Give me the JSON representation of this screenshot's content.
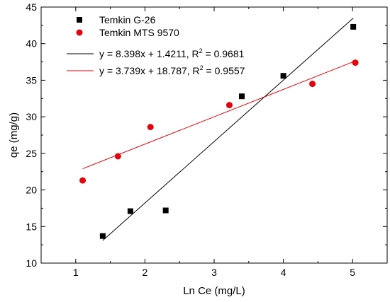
{
  "chart_data": {
    "type": "scatter",
    "title": "",
    "xlabel": "Ln Ce (mg/L)",
    "ylabel": "qe (mg/g)",
    "xlim": [
      0.5,
      5.5
    ],
    "ylim": [
      10,
      45
    ],
    "x_ticks": [
      1,
      2,
      3,
      4,
      5
    ],
    "y_ticks": [
      10,
      15,
      20,
      25,
      30,
      35,
      40,
      45
    ],
    "grid": false,
    "legend_position": "top-left",
    "series": [
      {
        "name": "Temkin G-26",
        "marker": "square",
        "color": "#000000",
        "x": [
          1.39,
          1.79,
          2.3,
          3.4,
          4.0,
          5.01
        ],
        "y": [
          13.7,
          17.1,
          17.2,
          32.8,
          35.6,
          42.3
        ]
      },
      {
        "name": "Temkin MTS 9570",
        "marker": "circle",
        "color": "#e8000b",
        "x": [
          1.1,
          1.61,
          2.08,
          3.22,
          4.42,
          5.04
        ],
        "y": [
          21.3,
          24.6,
          28.6,
          31.6,
          34.5,
          37.4
        ]
      }
    ],
    "fits": [
      {
        "series": "Temkin G-26",
        "color": "#000000",
        "slope": 8.398,
        "intercept": 1.4211,
        "x_range": [
          1.39,
          5.01
        ],
        "label_main": "y = 8.398x + 1.4211, R",
        "label_sup": "2",
        "label_tail": " = 0.9681"
      },
      {
        "series": "Temkin MTS 9570",
        "color": "#e8000b",
        "slope": 3.739,
        "intercept": 18.787,
        "x_range": [
          1.1,
          5.04
        ],
        "label_main": "y = 3.739x + 18.787, R",
        "label_sup": "2",
        "label_tail": " = 0.9557"
      }
    ]
  }
}
